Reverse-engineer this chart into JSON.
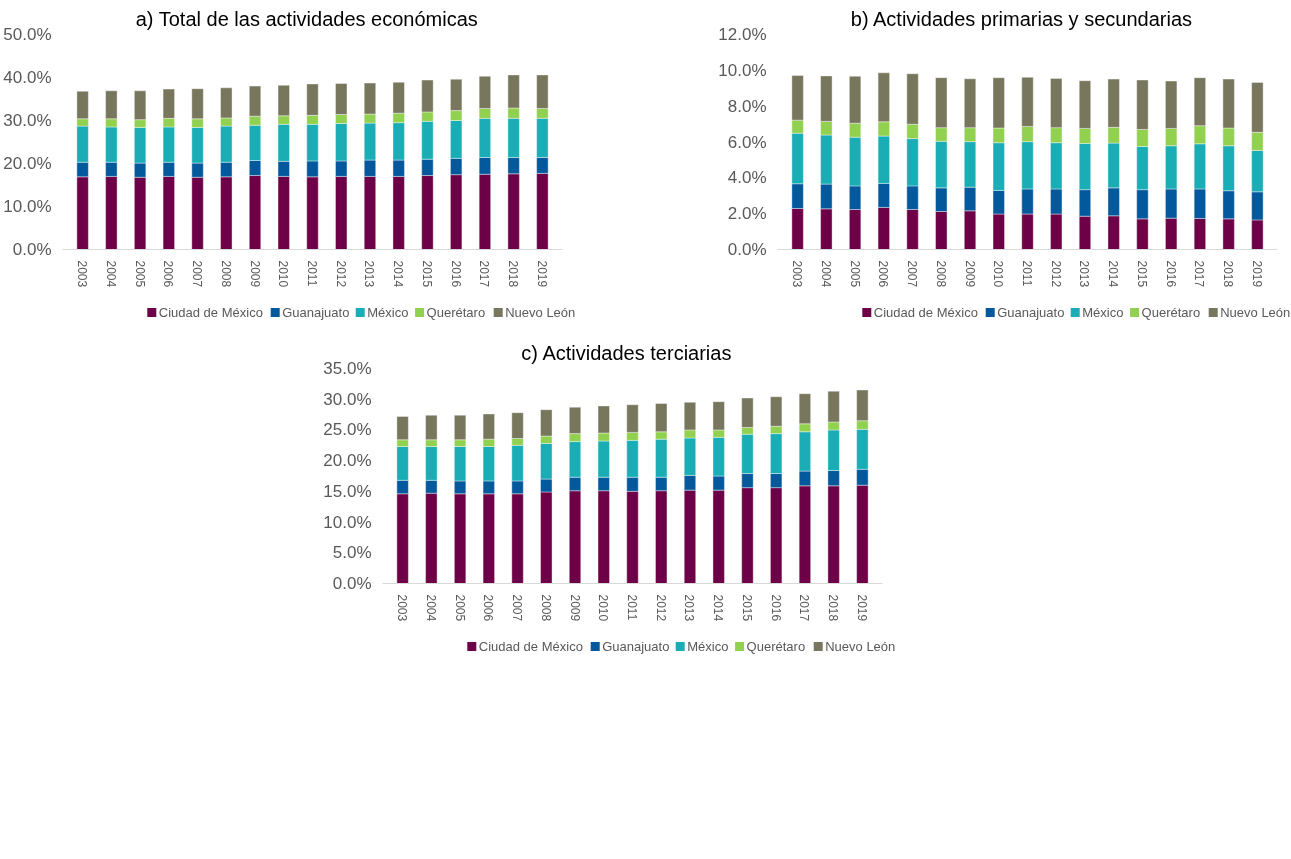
{
  "chart_data": [
    {
      "type": "bar",
      "stacked": true,
      "title": "a)   Total de las actividades económicas",
      "categories": [
        "2003",
        "2004",
        "2005",
        "2006",
        "2007",
        "2008",
        "2009",
        "2010",
        "2011",
        "2012",
        "2013",
        "2014",
        "2015",
        "2016",
        "2017",
        "2018",
        "2019"
      ],
      "ylim": [
        0,
        50
      ],
      "yticks": [
        {
          "value": 0,
          "label": "0.0%"
        },
        {
          "value": 10,
          "label": "10.0%"
        },
        {
          "value": 20,
          "label": "20.0%"
        },
        {
          "value": 30,
          "label": "30.0%"
        },
        {
          "value": 40,
          "label": "40.0%"
        },
        {
          "value": 50,
          "label": "50.0%"
        }
      ],
      "grid": false,
      "legend": "bottom",
      "series": [
        {
          "name": "Ciudad de México",
          "color": "#6d0046",
          "values": [
            16.9,
            17.0,
            16.8,
            17.0,
            16.8,
            16.9,
            17.2,
            17.0,
            16.9,
            17.0,
            17.0,
            17.0,
            17.2,
            17.4,
            17.5,
            17.6,
            17.7
          ]
        },
        {
          "name": "Guanajuato",
          "color": "#04589c",
          "values": [
            3.4,
            3.3,
            3.3,
            3.3,
            3.3,
            3.4,
            3.5,
            3.5,
            3.7,
            3.6,
            3.8,
            3.8,
            3.8,
            3.8,
            3.9,
            3.8,
            3.7
          ]
        },
        {
          "name": "México",
          "color": "#1aadb5",
          "values": [
            8.4,
            8.2,
            8.3,
            8.2,
            8.3,
            8.4,
            8.2,
            8.6,
            8.5,
            8.7,
            8.6,
            8.7,
            8.8,
            8.8,
            9.1,
            9.1,
            9.1
          ]
        },
        {
          "name": "Querétaro",
          "color": "#92d050",
          "values": [
            1.7,
            1.9,
            1.8,
            2.0,
            2.0,
            1.9,
            2.1,
            2.0,
            2.1,
            2.1,
            2.1,
            2.2,
            2.2,
            2.3,
            2.3,
            2.4,
            2.3
          ]
        },
        {
          "name": "Nuevo León",
          "color": "#78775d",
          "values": [
            6.4,
            6.5,
            6.7,
            6.8,
            7.0,
            7.0,
            7.0,
            7.1,
            7.3,
            7.2,
            7.2,
            7.2,
            7.4,
            7.3,
            7.5,
            7.7,
            7.8
          ]
        }
      ]
    },
    {
      "type": "bar",
      "stacked": true,
      "title": "b)   Actividades primarias y secundarias",
      "categories": [
        "2003",
        "2004",
        "2005",
        "2006",
        "2007",
        "2008",
        "2009",
        "2010",
        "2011",
        "2012",
        "2013",
        "2014",
        "2015",
        "2016",
        "2017",
        "2018",
        "2019"
      ],
      "ylim": [
        0,
        12
      ],
      "yticks": [
        {
          "value": 0,
          "label": "0.0%"
        },
        {
          "value": 2,
          "label": "2.0%"
        },
        {
          "value": 4,
          "label": "4.0%"
        },
        {
          "value": 6,
          "label": "6.0%"
        },
        {
          "value": 8,
          "label": "8.0%"
        },
        {
          "value": 10,
          "label": "10.0%"
        },
        {
          "value": 12,
          "label": "12.0%"
        }
      ],
      "grid": false,
      "legend": "bottom",
      "series": [
        {
          "name": "Ciudad de México",
          "color": "#6d0046",
          "values": [
            2.29,
            2.27,
            2.23,
            2.35,
            2.23,
            2.12,
            2.16,
            1.98,
            1.98,
            1.98,
            1.86,
            1.88,
            1.71,
            1.75,
            1.73,
            1.71,
            1.65
          ]
        },
        {
          "name": "Guanajuato",
          "color": "#04589c",
          "values": [
            1.38,
            1.38,
            1.32,
            1.34,
            1.32,
            1.32,
            1.32,
            1.32,
            1.4,
            1.4,
            1.48,
            1.56,
            1.63,
            1.63,
            1.65,
            1.57,
            1.57
          ]
        },
        {
          "name": "México",
          "color": "#1aadb5",
          "values": [
            2.82,
            2.74,
            2.72,
            2.64,
            2.64,
            2.6,
            2.54,
            2.66,
            2.64,
            2.58,
            2.58,
            2.5,
            2.41,
            2.41,
            2.52,
            2.51,
            2.31
          ]
        },
        {
          "name": "Querétaro",
          "color": "#92d050",
          "values": [
            0.73,
            0.76,
            0.78,
            0.8,
            0.8,
            0.76,
            0.78,
            0.82,
            0.85,
            0.84,
            0.84,
            0.88,
            0.95,
            0.97,
            1.01,
            0.99,
            1.01
          ]
        },
        {
          "name": "Nuevo León",
          "color": "#78775d",
          "values": [
            2.49,
            2.54,
            2.62,
            2.73,
            2.82,
            2.79,
            2.73,
            2.81,
            2.74,
            2.75,
            2.66,
            2.69,
            2.76,
            2.64,
            2.68,
            2.73,
            2.78
          ]
        }
      ]
    },
    {
      "type": "bar",
      "stacked": true,
      "title": "c)   Actividades terciarias",
      "categories": [
        "2003",
        "2004",
        "2005",
        "2006",
        "2007",
        "2008",
        "2009",
        "2010",
        "2011",
        "2012",
        "2013",
        "2014",
        "2015",
        "2016",
        "2017",
        "2018",
        "2019"
      ],
      "ylim": [
        0,
        35
      ],
      "yticks": [
        {
          "value": 0,
          "label": "0.0%"
        },
        {
          "value": 5,
          "label": "5.0%"
        },
        {
          "value": 10,
          "label": "10.0%"
        },
        {
          "value": 15,
          "label": "15.0%"
        },
        {
          "value": 20,
          "label": "20.0%"
        },
        {
          "value": 25,
          "label": "25.0%"
        },
        {
          "value": 30,
          "label": "30.0%"
        },
        {
          "value": 35,
          "label": "35.0%"
        }
      ],
      "grid": false,
      "legend": "bottom",
      "series": [
        {
          "name": "Ciudad de México",
          "color": "#6d0046",
          "values": [
            14.6,
            14.7,
            14.6,
            14.6,
            14.6,
            14.9,
            15.1,
            15.1,
            15.0,
            15.1,
            15.2,
            15.2,
            15.6,
            15.6,
            15.9,
            15.9,
            16.0
          ]
        },
        {
          "name": "Guanajuato",
          "color": "#04589c",
          "values": [
            2.2,
            2.1,
            2.1,
            2.1,
            2.1,
            2.1,
            2.2,
            2.2,
            2.3,
            2.2,
            2.4,
            2.3,
            2.3,
            2.3,
            2.4,
            2.5,
            2.6
          ]
        },
        {
          "name": "México",
          "color": "#1aadb5",
          "values": [
            5.5,
            5.5,
            5.6,
            5.6,
            5.8,
            5.8,
            5.8,
            5.9,
            6.0,
            6.2,
            6.1,
            6.3,
            6.4,
            6.5,
            6.4,
            6.6,
            6.5
          ]
        },
        {
          "name": "Querétaro",
          "color": "#92d050",
          "values": [
            1.1,
            1.1,
            1.1,
            1.2,
            1.1,
            1.2,
            1.3,
            1.3,
            1.3,
            1.2,
            1.3,
            1.2,
            1.1,
            1.2,
            1.3,
            1.3,
            1.4
          ]
        },
        {
          "name": "Nuevo León",
          "color": "#78775d",
          "values": [
            3.8,
            4.0,
            4.0,
            4.1,
            4.2,
            4.3,
            4.3,
            4.4,
            4.5,
            4.6,
            4.5,
            4.6,
            4.8,
            4.8,
            4.9,
            5.0,
            5.0
          ]
        }
      ]
    }
  ]
}
